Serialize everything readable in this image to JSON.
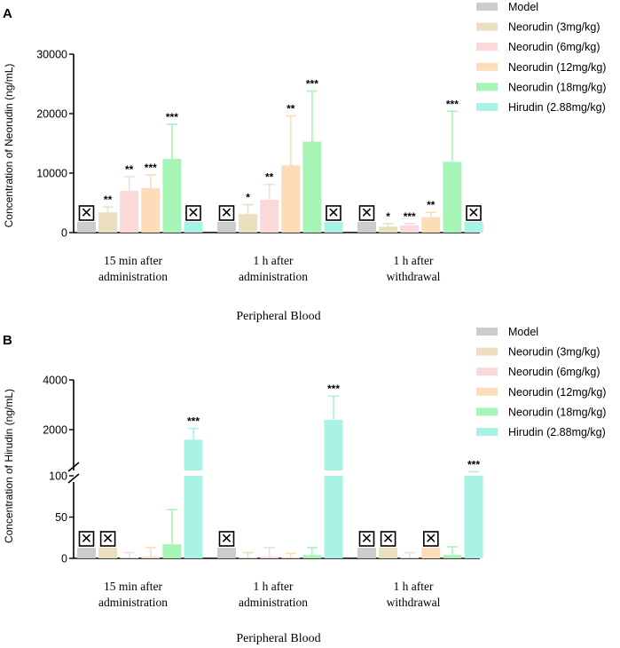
{
  "chart_data": [
    {
      "type": "bar",
      "panel_label": "A",
      "ylabel": "Concentration of Neorudin  (ng/mL)",
      "xlabel": "Peripheral Blood",
      "ylim": [
        0,
        30000
      ],
      "yticks": [
        "0",
        "10000",
        "20000",
        "30000"
      ],
      "ytick_values": [
        0,
        10000,
        20000,
        30000
      ],
      "categories": [
        "15 min after administration",
        "1 h after administration",
        "1 h after withdrawal"
      ],
      "category_lines": [
        [
          "15 min after",
          "administration"
        ],
        [
          "1 h after",
          "administration"
        ],
        [
          "1 h after",
          "withdrawal"
        ]
      ],
      "legend": [
        "Model",
        "Neorudin (3mg/kg)",
        "Neorudin (6mg/kg)",
        "Neorudin (12mg/kg)",
        "Neorudin (18mg/kg)",
        "Hirudin (2.88mg/kg)"
      ],
      "legend_position": "top-right",
      "not_detected_symbol": "☒",
      "series": [
        {
          "name": "Model",
          "values": [
            null,
            null,
            null
          ],
          "errors": [
            0,
            0,
            0
          ],
          "sig": [
            "",
            "",
            ""
          ],
          "nd": [
            true,
            true,
            true
          ]
        },
        {
          "name": "Neorudin (3mg/kg)",
          "values": [
            3400,
            3100,
            1000
          ],
          "errors": [
            900,
            1600,
            500
          ],
          "sig": [
            "**",
            "*",
            "*"
          ],
          "nd": [
            false,
            false,
            false
          ]
        },
        {
          "name": "Neorudin (6mg/kg)",
          "values": [
            7000,
            5500,
            1200
          ],
          "errors": [
            2400,
            2600,
            300
          ],
          "sig": [
            "**",
            "**",
            "***"
          ],
          "nd": [
            false,
            false,
            false
          ]
        },
        {
          "name": "Neorudin (12mg/kg)",
          "values": [
            7500,
            11300,
            2600
          ],
          "errors": [
            2200,
            8300,
            800
          ],
          "sig": [
            "***",
            "**",
            "**"
          ],
          "nd": [
            false,
            false,
            false
          ]
        },
        {
          "name": "Neorudin (18mg/kg)",
          "values": [
            12400,
            15300,
            11900
          ],
          "errors": [
            5800,
            8500,
            8500
          ],
          "sig": [
            "***",
            "***",
            "***"
          ],
          "nd": [
            false,
            false,
            false
          ]
        },
        {
          "name": "Hirudin (2.88mg/kg)",
          "values": [
            null,
            null,
            null
          ],
          "errors": [
            0,
            0,
            0
          ],
          "sig": [
            "",
            "",
            ""
          ],
          "nd": [
            true,
            true,
            true
          ]
        }
      ]
    },
    {
      "type": "bar",
      "panel_label": "B",
      "ylabel": "Concentration of Hirudin  (ng/mL)",
      "xlabel": "Peripheral Blood",
      "broken_axis": true,
      "ylim_lower": [
        0,
        100
      ],
      "ylim_upper": [
        100,
        4000
      ],
      "yticks": [
        "0",
        "50",
        "100",
        "2000",
        "4000"
      ],
      "ytick_values": [
        0,
        50,
        100,
        2000,
        4000
      ],
      "categories": [
        "15 min after administration",
        "1 h after administration",
        "1 h after withdrawal"
      ],
      "category_lines": [
        [
          "15 min after",
          "administration"
        ],
        [
          "1 h after",
          "administration"
        ],
        [
          "1 h after",
          "withdrawal"
        ]
      ],
      "legend": [
        "Model",
        "Neorudin (3mg/kg)",
        "Neorudin (6mg/kg)",
        "Neorudin (12mg/kg)",
        "Neorudin (18mg/kg)",
        "Hirudin (2.88mg/kg)"
      ],
      "legend_position": "top-right",
      "not_detected_symbol": "☒",
      "series": [
        {
          "name": "Model",
          "values": [
            null,
            null,
            null
          ],
          "errors": [
            0,
            0,
            0
          ],
          "sig": [
            "",
            "",
            ""
          ],
          "nd": [
            true,
            true,
            true
          ]
        },
        {
          "name": "Neorudin (3mg/kg)",
          "values": [
            null,
            1,
            null
          ],
          "errors": [
            0,
            6,
            0
          ],
          "sig": [
            "",
            "",
            ""
          ],
          "nd": [
            true,
            false,
            true
          ]
        },
        {
          "name": "Neorudin (6mg/kg)",
          "values": [
            1,
            2,
            1
          ],
          "errors": [
            6,
            11,
            6
          ],
          "sig": [
            "",
            "",
            ""
          ],
          "nd": [
            false,
            false,
            false
          ]
        },
        {
          "name": "Neorudin (12mg/kg)",
          "values": [
            2,
            1,
            null
          ],
          "errors": [
            11,
            5,
            0
          ],
          "sig": [
            "",
            "",
            ""
          ],
          "nd": [
            false,
            false,
            true
          ]
        },
        {
          "name": "Neorudin (18mg/kg)",
          "values": [
            17,
            4,
            4
          ],
          "errors": [
            42,
            9,
            10
          ],
          "sig": [
            "",
            "",
            ""
          ],
          "nd": [
            false,
            false,
            false
          ]
        },
        {
          "name": "Hirudin (2.88mg/kg)",
          "values": [
            1600,
            2400,
            300
          ],
          "errors": [
            450,
            950,
            30
          ],
          "sig": [
            "***",
            "***",
            "***"
          ],
          "nd": [
            false,
            false,
            false
          ]
        }
      ]
    }
  ],
  "colors": {
    "Model": "#cccccc",
    "Neorudin (3mg/kg)": "#ecdfc0",
    "Neorudin (6mg/kg)": "#fbd9d9",
    "Neorudin (12mg/kg)": "#fddcb8",
    "Neorudin (18mg/kg)": "#a6f5b7",
    "Hirudin (2.88mg/kg)": "#a9f2e6",
    "axis": "#000000",
    "text": "#000000"
  }
}
